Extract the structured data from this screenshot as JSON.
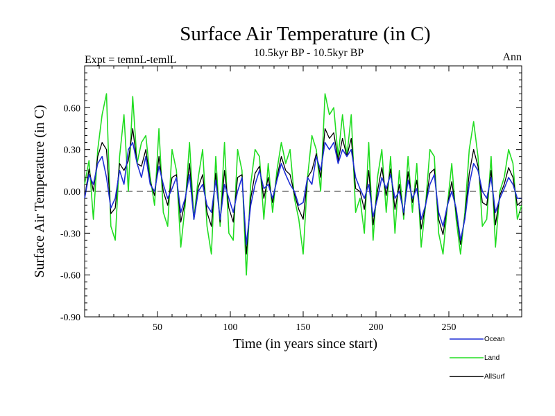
{
  "header": {
    "title": "Surface Air Temperature (in C)",
    "subtitle": "10.5kyr BP - 10.5kyr BP",
    "expt_label": "Expt = temnL-temlL",
    "season_label": "Ann"
  },
  "colors": {
    "ocean": "#1f2fd6",
    "land": "#22dd22",
    "allsurf": "#000000",
    "zero_line": "#555555"
  },
  "chart_data": {
    "type": "line",
    "title": "Surface Air Temperature (in C)",
    "xlabel": "Time (in years since start)",
    "ylabel": "Surface Air Temperature (in C)",
    "xlim": [
      0,
      300
    ],
    "ylim": [
      -0.9,
      0.9
    ],
    "x_ticks": [
      50,
      100,
      150,
      200,
      250
    ],
    "x_tick_labels": [
      "50",
      "100",
      "150",
      "200",
      "250"
    ],
    "y_ticks": [
      -0.9,
      -0.6,
      -0.3,
      0.0,
      0.3,
      0.6
    ],
    "y_tick_labels": [
      "-0.90",
      "-0.60",
      "-0.30",
      "0.00",
      "0.30",
      "0.60"
    ],
    "reference_line": 0.0,
    "x": [
      0,
      3,
      6,
      9,
      12,
      15,
      18,
      21,
      24,
      27,
      30,
      33,
      36,
      39,
      42,
      45,
      48,
      51,
      54,
      57,
      60,
      63,
      66,
      69,
      72,
      75,
      78,
      81,
      84,
      87,
      90,
      93,
      96,
      99,
      102,
      105,
      108,
      111,
      114,
      117,
      120,
      123,
      126,
      129,
      132,
      135,
      138,
      141,
      144,
      147,
      150,
      153,
      156,
      159,
      162,
      165,
      168,
      171,
      174,
      177,
      180,
      183,
      186,
      189,
      192,
      195,
      198,
      201,
      204,
      207,
      210,
      213,
      216,
      219,
      222,
      225,
      228,
      231,
      234,
      237,
      240,
      243,
      246,
      249,
      252,
      255,
      258,
      261,
      264,
      267,
      270,
      273,
      276,
      279,
      282,
      285,
      288,
      291,
      294,
      297,
      300
    ],
    "series": [
      {
        "name": "Ocean",
        "values": [
          -0.05,
          0.12,
          0.05,
          0.2,
          0.25,
          0.1,
          -0.12,
          -0.05,
          0.15,
          0.05,
          0.3,
          0.35,
          0.2,
          0.1,
          0.25,
          0.05,
          0.0,
          0.18,
          0.05,
          -0.05,
          0.02,
          0.1,
          -0.15,
          -0.05,
          0.12,
          -0.2,
          0.0,
          0.05,
          -0.1,
          -0.15,
          0.08,
          -0.2,
          0.05,
          -0.05,
          -0.15,
          0.0,
          0.1,
          -0.38,
          -0.1,
          0.05,
          0.15,
          0.02,
          0.05,
          -0.05,
          0.08,
          0.2,
          0.12,
          0.05,
          0.0,
          -0.1,
          -0.08,
          0.1,
          0.05,
          0.25,
          0.15,
          0.35,
          0.3,
          0.35,
          0.2,
          0.3,
          0.25,
          0.3,
          0.1,
          0.02,
          -0.05,
          0.05,
          -0.18,
          -0.05,
          0.1,
          0.02,
          0.12,
          -0.05,
          0.0,
          -0.15,
          0.08,
          -0.05,
          0.02,
          -0.2,
          -0.1,
          0.05,
          0.12,
          -0.15,
          -0.25,
          -0.1,
          0.0,
          -0.12,
          -0.35,
          -0.2,
          0.05,
          0.2,
          0.15,
          0.0,
          -0.05,
          0.1,
          -0.15,
          -0.05,
          0.02,
          0.1,
          0.05,
          -0.05,
          -0.05
        ]
      },
      {
        "name": "Land",
        "values": [
          0.05,
          0.22,
          -0.2,
          0.3,
          0.55,
          0.7,
          -0.25,
          -0.35,
          0.25,
          0.55,
          0.0,
          0.68,
          0.2,
          0.35,
          0.4,
          0.1,
          -0.1,
          0.45,
          -0.15,
          -0.25,
          0.3,
          0.15,
          -0.4,
          -0.1,
          0.35,
          -0.2,
          0.1,
          0.3,
          -0.25,
          -0.45,
          0.25,
          -0.25,
          0.35,
          -0.3,
          -0.35,
          0.3,
          0.15,
          -0.6,
          0.05,
          0.3,
          0.25,
          -0.2,
          0.2,
          -0.15,
          0.15,
          0.35,
          0.2,
          0.3,
          -0.05,
          -0.2,
          -0.45,
          0.1,
          0.4,
          0.3,
          0.0,
          0.7,
          0.55,
          0.6,
          0.25,
          0.55,
          0.25,
          0.55,
          -0.15,
          -0.05,
          -0.3,
          0.35,
          -0.35,
          0.1,
          0.3,
          -0.15,
          0.25,
          -0.3,
          0.15,
          -0.2,
          0.25,
          -0.15,
          0.2,
          -0.4,
          -0.1,
          0.3,
          0.25,
          -0.3,
          -0.45,
          -0.1,
          0.2,
          -0.2,
          -0.45,
          -0.15,
          0.3,
          0.5,
          0.25,
          -0.25,
          -0.2,
          0.25,
          -0.4,
          0.0,
          0.1,
          0.3,
          0.2,
          -0.2,
          -0.1
        ]
      },
      {
        "name": "AllSurf",
        "values": [
          -0.05,
          0.16,
          0.0,
          0.25,
          0.35,
          0.3,
          -0.16,
          -0.12,
          0.2,
          0.15,
          0.22,
          0.45,
          0.2,
          0.18,
          0.3,
          0.07,
          -0.03,
          0.25,
          0.0,
          -0.1,
          0.1,
          0.12,
          -0.22,
          -0.07,
          0.2,
          -0.2,
          0.03,
          0.12,
          -0.15,
          -0.25,
          0.13,
          -0.22,
          0.15,
          -0.12,
          -0.22,
          0.1,
          0.12,
          -0.45,
          -0.05,
          0.13,
          0.18,
          -0.05,
          0.1,
          -0.08,
          0.1,
          0.25,
          0.15,
          0.12,
          -0.02,
          -0.13,
          -0.2,
          0.1,
          0.15,
          0.27,
          0.1,
          0.45,
          0.38,
          0.42,
          0.22,
          0.38,
          0.25,
          0.38,
          0.02,
          0.0,
          -0.13,
          0.15,
          -0.24,
          0.0,
          0.17,
          -0.03,
          0.16,
          -0.13,
          0.05,
          -0.17,
          0.14,
          -0.08,
          0.08,
          -0.27,
          -0.1,
          0.13,
          0.16,
          -0.2,
          -0.31,
          -0.1,
          0.07,
          -0.15,
          -0.38,
          -0.18,
          0.13,
          0.3,
          0.18,
          -0.08,
          -0.1,
          0.15,
          -0.24,
          -0.03,
          0.05,
          0.17,
          0.1,
          -0.1,
          -0.07
        ]
      }
    ],
    "legend": {
      "position": "bottom-right",
      "entries": [
        "Ocean",
        "Land",
        "AllSurf"
      ]
    }
  }
}
